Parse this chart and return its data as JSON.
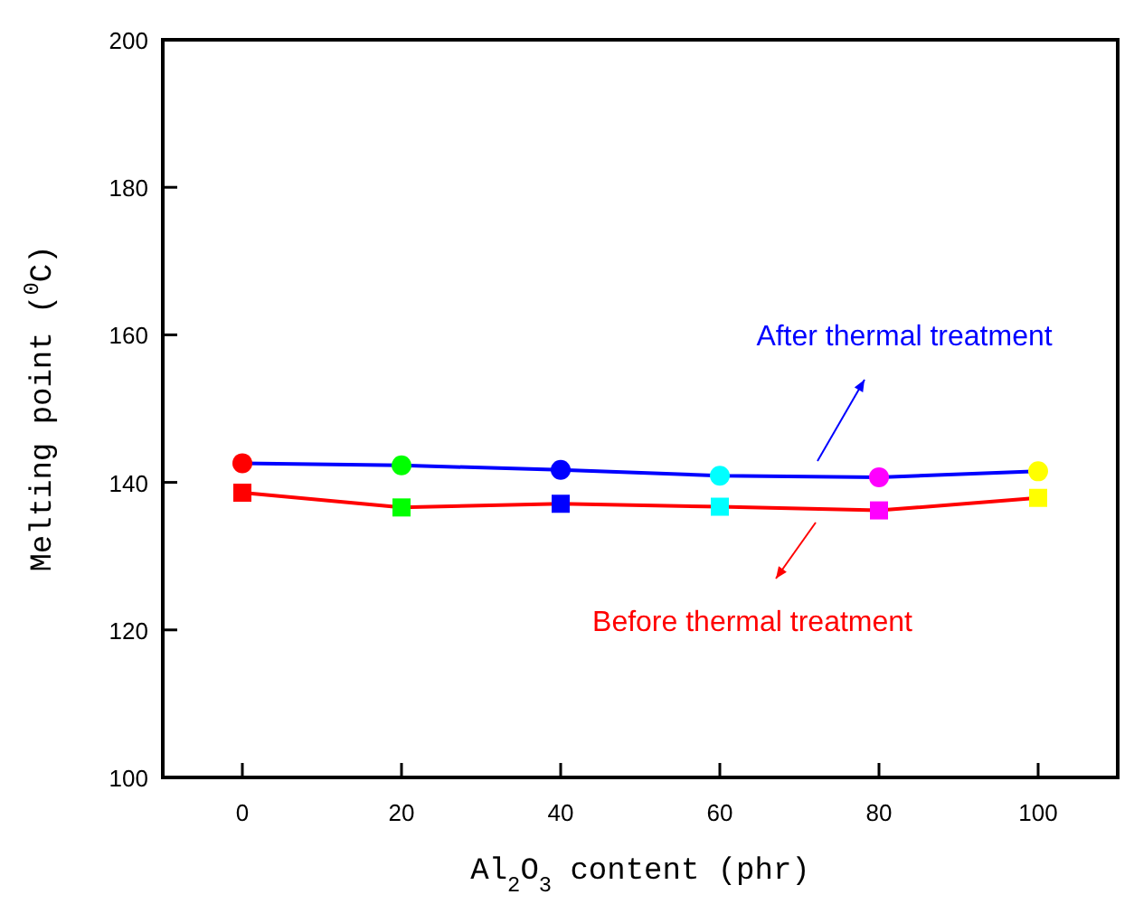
{
  "chart_data": {
    "type": "line",
    "xlabel": "Al$_{2}$O$_{3}$ content (phr)",
    "ylabel": "Melting point ($^{0}$C)",
    "x": [
      0,
      20,
      40,
      60,
      80,
      100
    ],
    "series": [
      {
        "color": "#0000ff",
        "marker": "circle",
        "colors": [
          "#ff0000",
          "#00ff00",
          "#0000ff",
          "#00ffff",
          "#ff00ff",
          "#ffff00"
        ],
        "values": [
          142.6,
          142.3,
          141.7,
          140.9,
          140.7,
          141.5
        ]
      },
      {
        "color": "#ff0000",
        "marker": "square",
        "colors": [
          "#ff0000",
          "#00ff00",
          "#0000ff",
          "#00ffff",
          "#ff00ff",
          "#ffff00"
        ],
        "values": [
          138.6,
          136.6,
          137.1,
          136.7,
          136.2,
          137.9
        ]
      }
    ],
    "xlim": [
      -10,
      110
    ],
    "ylim": [
      100,
      200
    ],
    "xticks": [
      0,
      20,
      40,
      60,
      80,
      100
    ],
    "yticks": [
      100,
      120,
      140,
      160,
      180,
      200
    ],
    "annotations": [
      "After thermal treatment",
      "Before thermal treatment"
    ],
    "grid": false
  }
}
